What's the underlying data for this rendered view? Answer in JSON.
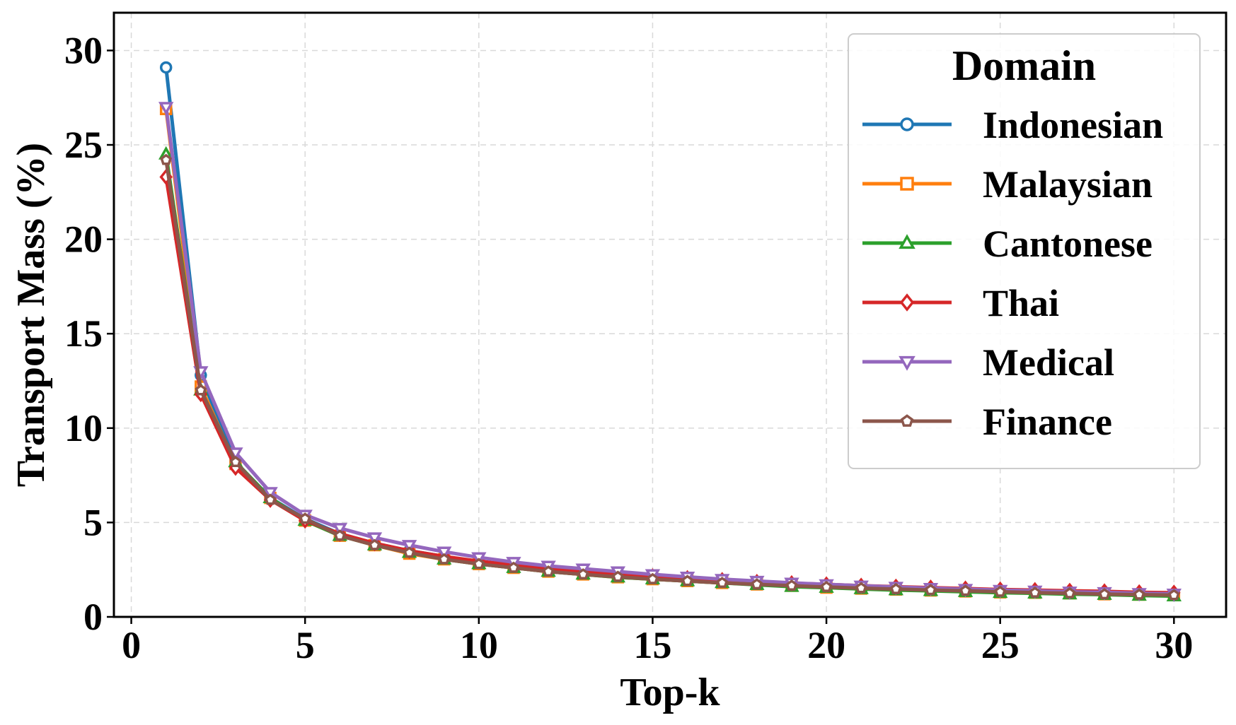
{
  "chart_data": {
    "type": "line",
    "xlabel": "Top-k",
    "ylabel": "Transport Mass (%)",
    "xlim": [
      -0.5,
      31.5
    ],
    "ylim": [
      0,
      32
    ],
    "xticks": [
      0,
      5,
      10,
      15,
      20,
      25,
      30
    ],
    "yticks": [
      0,
      5,
      10,
      15,
      20,
      25,
      30
    ],
    "grid": true,
    "legend": {
      "title": "Domain",
      "placement": "top-right"
    },
    "x": [
      1,
      2,
      3,
      4,
      5,
      6,
      7,
      8,
      9,
      10,
      11,
      12,
      13,
      14,
      15,
      16,
      17,
      18,
      19,
      20,
      21,
      22,
      23,
      24,
      25,
      26,
      27,
      28,
      29,
      30
    ],
    "series": [
      {
        "name": "Indonesian",
        "color": "#1f77b4",
        "marker": "circle",
        "values": [
          29.1,
          12.8,
          8.2,
          6.3,
          5.2,
          4.4,
          3.9,
          3.5,
          3.2,
          2.9,
          2.7,
          2.5,
          2.35,
          2.2,
          2.1,
          1.95,
          1.85,
          1.75,
          1.7,
          1.6,
          1.55,
          1.5,
          1.45,
          1.4,
          1.35,
          1.3,
          1.28,
          1.25,
          1.2,
          1.15
        ]
      },
      {
        "name": "Malaysian",
        "color": "#ff7f0e",
        "marker": "square",
        "values": [
          26.9,
          12.2,
          8.1,
          6.3,
          5.1,
          4.3,
          3.8,
          3.35,
          3.05,
          2.8,
          2.6,
          2.4,
          2.25,
          2.1,
          2.0,
          1.9,
          1.8,
          1.72,
          1.65,
          1.55,
          1.5,
          1.45,
          1.4,
          1.35,
          1.3,
          1.28,
          1.25,
          1.2,
          1.18,
          1.15
        ]
      },
      {
        "name": "Cantonese",
        "color": "#2ca02c",
        "marker": "triangle-up",
        "values": [
          24.5,
          12.0,
          8.2,
          6.3,
          5.1,
          4.3,
          3.8,
          3.4,
          3.05,
          2.8,
          2.6,
          2.4,
          2.25,
          2.1,
          2.0,
          1.9,
          1.8,
          1.7,
          1.6,
          1.55,
          1.48,
          1.42,
          1.38,
          1.33,
          1.28,
          1.25,
          1.2,
          1.18,
          1.13,
          1.1
        ]
      },
      {
        "name": "Thai",
        "color": "#d62728",
        "marker": "diamond",
        "values": [
          23.3,
          11.8,
          7.9,
          6.2,
          5.1,
          4.4,
          3.9,
          3.5,
          3.2,
          2.95,
          2.75,
          2.55,
          2.4,
          2.25,
          2.15,
          2.05,
          1.95,
          1.85,
          1.78,
          1.72,
          1.65,
          1.6,
          1.55,
          1.5,
          1.45,
          1.42,
          1.38,
          1.35,
          1.3,
          1.28
        ]
      },
      {
        "name": "Medical",
        "color": "#9467bd",
        "marker": "triangle-down",
        "values": [
          27.0,
          13.0,
          8.7,
          6.6,
          5.4,
          4.7,
          4.2,
          3.8,
          3.45,
          3.15,
          2.9,
          2.7,
          2.55,
          2.4,
          2.25,
          2.12,
          2.0,
          1.9,
          1.8,
          1.72,
          1.65,
          1.58,
          1.52,
          1.47,
          1.42,
          1.38,
          1.33,
          1.3,
          1.25,
          1.22
        ]
      },
      {
        "name": "Finance",
        "color": "#8c564b",
        "marker": "pentagon",
        "values": [
          24.2,
          12.0,
          8.2,
          6.2,
          5.2,
          4.3,
          3.8,
          3.4,
          3.05,
          2.8,
          2.6,
          2.4,
          2.25,
          2.12,
          2.0,
          1.9,
          1.8,
          1.72,
          1.65,
          1.58,
          1.52,
          1.47,
          1.42,
          1.38,
          1.33,
          1.28,
          1.25,
          1.2,
          1.18,
          1.15
        ]
      }
    ]
  }
}
